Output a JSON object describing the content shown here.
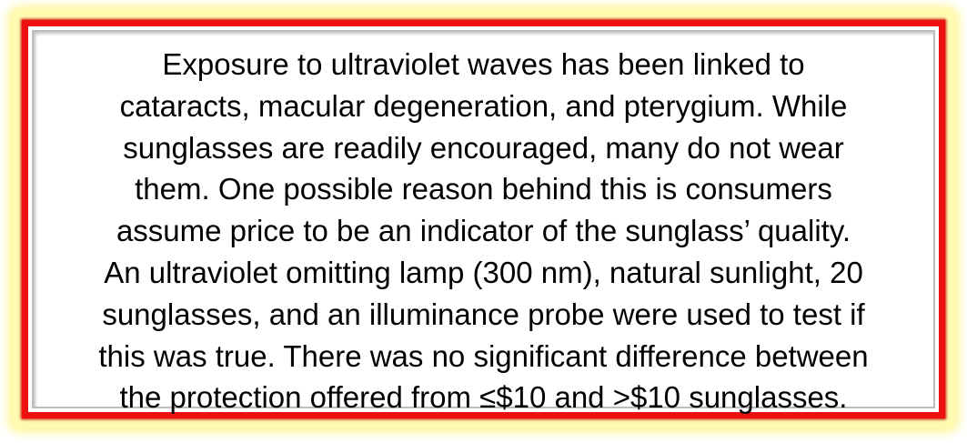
{
  "box": {
    "lines": [
      "Exposure to ultraviolet waves has been linked to",
      "cataracts, macular degeneration, and pterygium. While",
      "sunglasses are readily encouraged, many do not wear",
      "them. One possible reason behind this is consumers",
      "assume price to be an indicator of the sunglass’ quality.",
      "An ultraviolet omitting lamp (300 nm), natural sunlight, 20",
      "sunglasses, and an illuminance probe were used to test if",
      "this was true. There was no significant difference between",
      "the protection offered from ≤$10 and >$10 sunglasses."
    ],
    "border_color": "#ee1111",
    "glow_color": "#fff7a0"
  }
}
